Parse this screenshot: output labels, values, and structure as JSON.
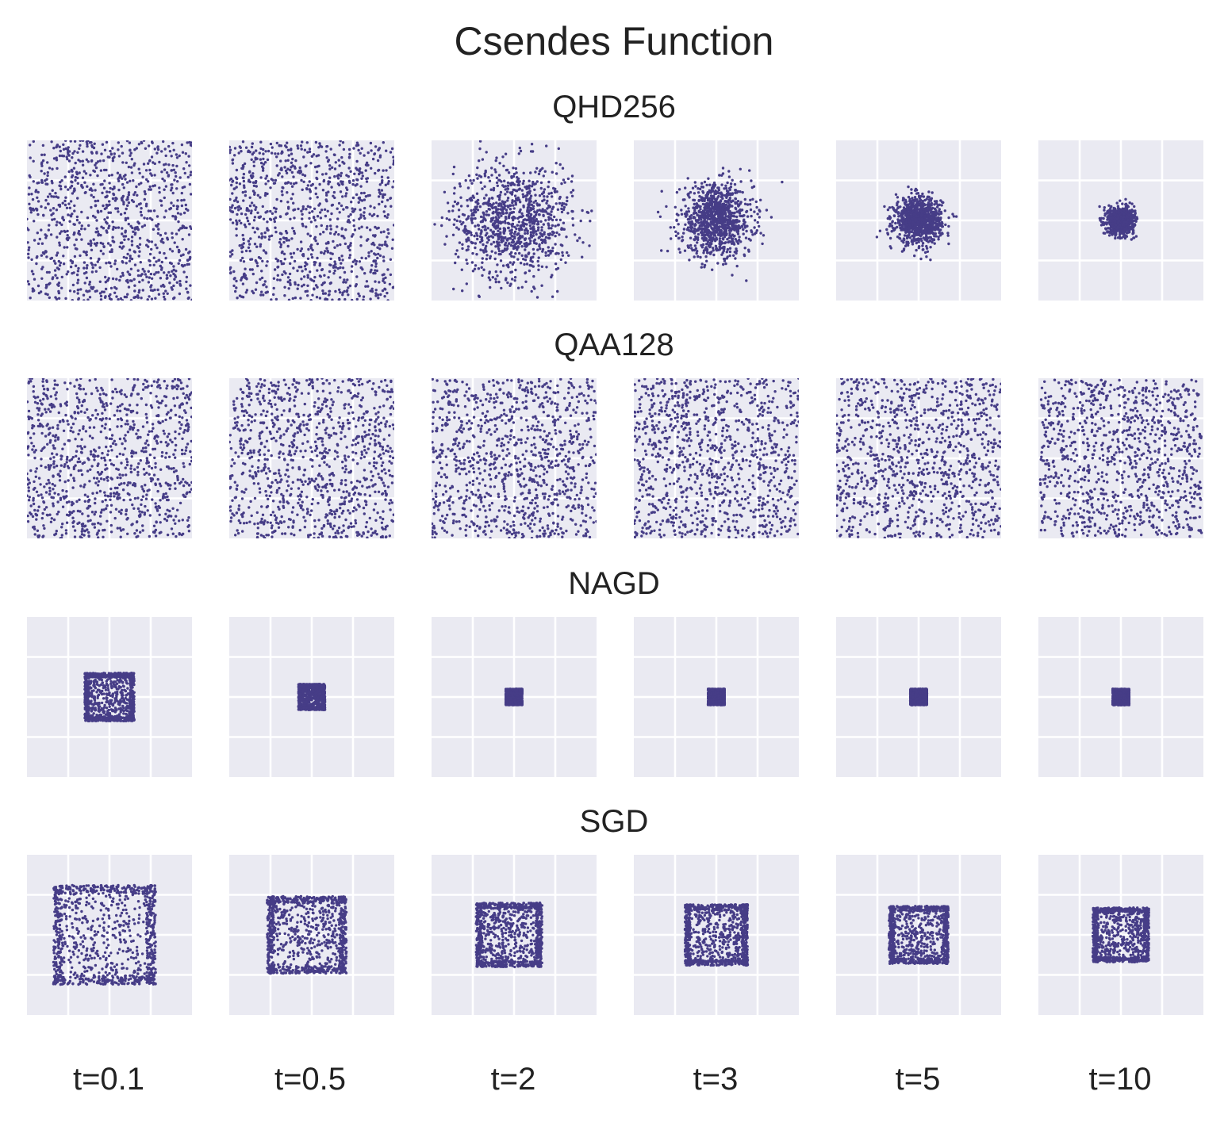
{
  "chart_data": {
    "type": "scatter",
    "title": "Csendes Function",
    "times": [
      "t=0.1",
      "t=0.5",
      "t=2",
      "t=3",
      "t=5",
      "t=10"
    ],
    "xlim": [
      -1.0,
      1.0
    ],
    "ylim": [
      -1.0,
      1.0
    ],
    "grid": true,
    "grid_ticks": [
      -0.5,
      0.0,
      0.5
    ],
    "point_color": "#463d87",
    "background_color": "#eaeaf2",
    "grid_color": "#ffffff",
    "points_per_panel": 1000,
    "rows": [
      {
        "method": "QHD256",
        "panels": [
          {
            "t": "t=0.1",
            "distribution": "uniform",
            "half_width": 1.0
          },
          {
            "t": "t=0.5",
            "distribution": "uniform",
            "half_width": 1.0
          },
          {
            "t": "t=2",
            "distribution": "gaussian",
            "std": 0.36,
            "center": [
              0.0,
              0.0
            ]
          },
          {
            "t": "t=3",
            "distribution": "gaussian",
            "std": 0.22,
            "center": [
              0.0,
              0.0
            ]
          },
          {
            "t": "t=5",
            "distribution": "gaussian",
            "std": 0.14,
            "center": [
              0.0,
              0.0
            ]
          },
          {
            "t": "t=10",
            "distribution": "gaussian",
            "std": 0.08,
            "center": [
              0.0,
              0.0
            ]
          }
        ]
      },
      {
        "method": "QAA128",
        "panels": [
          {
            "t": "t=0.1",
            "distribution": "uniform",
            "half_width": 1.0
          },
          {
            "t": "t=0.5",
            "distribution": "uniform",
            "half_width": 1.0
          },
          {
            "t": "t=2",
            "distribution": "uniform",
            "half_width": 1.0
          },
          {
            "t": "t=3",
            "distribution": "uniform",
            "half_width": 1.0
          },
          {
            "t": "t=5",
            "distribution": "uniform",
            "half_width": 1.0
          },
          {
            "t": "t=10",
            "distribution": "uniform",
            "half_width": 0.98
          }
        ]
      },
      {
        "method": "NAGD",
        "panels": [
          {
            "t": "t=0.1",
            "distribution": "square_ring",
            "half_width": 0.3,
            "center": [
              0.0,
              0.0
            ]
          },
          {
            "t": "t=0.5",
            "distribution": "square_ring",
            "half_width": 0.16,
            "center": [
              0.0,
              0.0
            ]
          },
          {
            "t": "t=2",
            "distribution": "square_ring",
            "half_width": 0.1,
            "center": [
              0.0,
              0.0
            ]
          },
          {
            "t": "t=3",
            "distribution": "square_ring",
            "half_width": 0.1,
            "center": [
              0.0,
              0.0
            ]
          },
          {
            "t": "t=5",
            "distribution": "square_ring",
            "half_width": 0.1,
            "center": [
              0.0,
              0.0
            ]
          },
          {
            "t": "t=10",
            "distribution": "square_ring",
            "half_width": 0.1,
            "center": [
              0.0,
              0.0
            ]
          }
        ]
      },
      {
        "method": "SGD",
        "panels": [
          {
            "t": "t=0.1",
            "distribution": "square_ring",
            "half_width": 0.62,
            "center": [
              -0.06,
              0.0
            ]
          },
          {
            "t": "t=0.5",
            "distribution": "square_ring",
            "half_width": 0.48,
            "center": [
              -0.06,
              0.0
            ]
          },
          {
            "t": "t=2",
            "distribution": "square_ring",
            "half_width": 0.4,
            "center": [
              -0.06,
              0.0
            ]
          },
          {
            "t": "t=3",
            "distribution": "square_ring",
            "half_width": 0.38,
            "center": [
              0.0,
              0.0
            ]
          },
          {
            "t": "t=5",
            "distribution": "square_ring",
            "half_width": 0.36,
            "center": [
              0.0,
              0.0
            ]
          },
          {
            "t": "t=10",
            "distribution": "square_ring",
            "half_width": 0.34,
            "center": [
              0.0,
              0.0
            ]
          }
        ]
      }
    ]
  }
}
